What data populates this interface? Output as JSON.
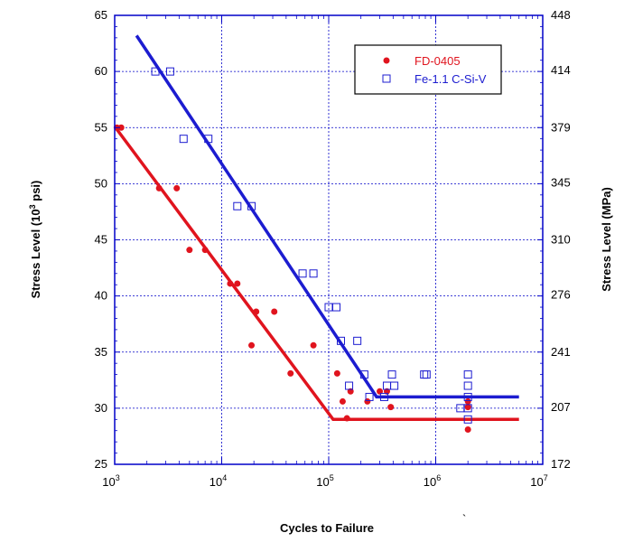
{
  "chart_data": {
    "type": "scatter",
    "xlabel": "Cycles to Failure",
    "ylabel_left": "Stress Level (10",
    "ylabel_left_sup": "3",
    "ylabel_left_suffix": " psi)",
    "ylabel_right": "Stress Level (MPa)",
    "x_scale": "log",
    "xlim": [
      1000,
      10000000
    ],
    "ylim": [
      25,
      65
    ],
    "ylim_right": [
      172,
      448
    ],
    "grid": true,
    "legend_position": "top-right",
    "x_ticks": [
      {
        "value": 1000,
        "base": "10",
        "exp": "3"
      },
      {
        "value": 10000,
        "base": "10",
        "exp": "4"
      },
      {
        "value": 100000,
        "base": "10",
        "exp": "5"
      },
      {
        "value": 1000000,
        "base": "10",
        "exp": "6"
      },
      {
        "value": 10000000,
        "base": "10",
        "exp": "7"
      }
    ],
    "y_ticks_left": [
      25,
      30,
      35,
      40,
      45,
      50,
      55,
      60,
      65
    ],
    "y_ticks_right": [
      172,
      207,
      241,
      276,
      310,
      345,
      379,
      414,
      448
    ],
    "series": [
      {
        "name": "FD-0405",
        "color": "#e0141e",
        "marker": "filled-circle",
        "points": [
          [
            1050,
            55
          ],
          [
            1150,
            55
          ],
          [
            2600,
            49.6
          ],
          [
            3800,
            49.6
          ],
          [
            5000,
            44.1
          ],
          [
            7000,
            44.1
          ],
          [
            12000,
            41.1
          ],
          [
            14000,
            41.1
          ],
          [
            19000,
            35.6
          ],
          [
            21000,
            38.6
          ],
          [
            31000,
            38.6
          ],
          [
            44000,
            33.1
          ],
          [
            72000,
            35.6
          ],
          [
            120000,
            33.1
          ],
          [
            135000,
            30.6
          ],
          [
            148000,
            29.1
          ],
          [
            160000,
            31.5
          ],
          [
            230000,
            30.6
          ],
          [
            300000,
            31.5
          ],
          [
            350000,
            31.5
          ],
          [
            380000,
            30.1
          ],
          [
            2000000,
            30.6
          ],
          [
            2000000,
            30.1
          ],
          [
            2000000,
            28.1
          ]
        ],
        "fit_line": [
          [
            1000,
            55.1
          ],
          [
            110000,
            29
          ],
          [
            6000000,
            29
          ]
        ]
      },
      {
        "name": "Fe-1.1 C-Si-V",
        "color": "#1c1cd0",
        "marker": "open-square",
        "points": [
          [
            2400,
            60
          ],
          [
            3300,
            60
          ],
          [
            4400,
            54
          ],
          [
            7500,
            54
          ],
          [
            14000,
            48
          ],
          [
            19000,
            48
          ],
          [
            57000,
            42
          ],
          [
            72000,
            42
          ],
          [
            100000,
            39
          ],
          [
            118000,
            39
          ],
          [
            130000,
            36
          ],
          [
            185000,
            36
          ],
          [
            155000,
            32
          ],
          [
            215000,
            33
          ],
          [
            240000,
            31
          ],
          [
            330000,
            31
          ],
          [
            350000,
            32
          ],
          [
            390000,
            33
          ],
          [
            410000,
            32
          ],
          [
            780000,
            33
          ],
          [
            820000,
            33
          ],
          [
            1700000,
            30
          ],
          [
            2000000,
            33
          ],
          [
            2000000,
            32
          ],
          [
            2000000,
            31
          ],
          [
            2000000,
            30
          ],
          [
            2000000,
            29
          ]
        ],
        "fit_line": [
          [
            1600,
            63.2
          ],
          [
            280000,
            31
          ],
          [
            6000000,
            31
          ]
        ]
      }
    ],
    "stray_mark": "`"
  }
}
